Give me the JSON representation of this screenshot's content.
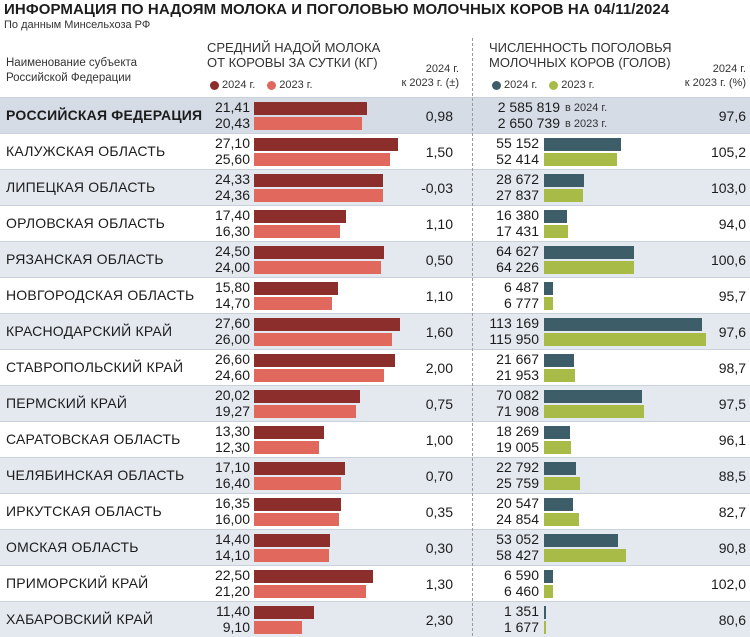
{
  "header": {
    "title": "ИНФОРМАЦИЯ ПО НАДОЯМ МОЛОКА И ПОГОЛОВЬЮ МОЛОЧНЫХ КОРОВ НА 04/11/2024",
    "source": "По данным Минсельхоза РФ",
    "region_col": [
      "Наименование субъекта",
      "Российской Федерации"
    ],
    "milk_col": [
      "СРЕДНИЙ НАДОЙ МОЛОКА",
      "ОТ КОРОВЫ ЗА СУТКИ (КГ)"
    ],
    "herd_col": [
      "ЧИСЛЕННОСТЬ ПОГОЛОВЬЯ",
      "МОЛОЧНЫХ КОРОВ (ГОЛОВ)"
    ],
    "milk_change_col": [
      "2024 г.",
      "к 2023 г. (±)"
    ],
    "herd_change_col": [
      "2024 г.",
      "к 2023 г. (%)"
    ],
    "legend_2024": "2024 г.",
    "legend_2023": "2023 г.",
    "rf_note_2024": "в 2024 г.",
    "rf_note_2023": "в 2023 г."
  },
  "colors": {
    "milk_2024": "#8c2f2c",
    "milk_2023": "#e0685c",
    "herd_2024": "#3d5d68",
    "herd_2023": "#a9bb47"
  },
  "chart_data": {
    "type": "table",
    "title": "ИНФОРМАЦИЯ ПО НАДОЯМ МОЛОКА И ПОГОЛОВЬЮ МОЛОЧНЫХ КОРОВ НА 04/11/2024",
    "series": [
      {
        "name": "2024 г.",
        "measure": "milk"
      },
      {
        "name": "2023 г.",
        "measure": "milk"
      },
      {
        "name": "2024 г.",
        "measure": "herd"
      },
      {
        "name": "2023 г.",
        "measure": "herd"
      }
    ],
    "rows": [
      {
        "region": "РОССИЙСКАЯ ФЕДЕРАЦИЯ",
        "milk_2024": 21.41,
        "milk_2023": 20.43,
        "milk_2024_text": "21,41",
        "milk_2023_text": "20,43",
        "milk_change": "0,98",
        "herd_2024": 2585819,
        "herd_2023": 2650739,
        "herd_2024_text": "2 585 819",
        "herd_2023_text": "2 650 739",
        "herd_change": "97,6"
      },
      {
        "region": "КАЛУЖСКАЯ ОБЛАСТЬ",
        "milk_2024": 27.1,
        "milk_2023": 25.6,
        "milk_2024_text": "27,10",
        "milk_2023_text": "25,60",
        "milk_change": "1,50",
        "herd_2024": 55152,
        "herd_2023": 52414,
        "herd_2024_text": "55 152",
        "herd_2023_text": "52 414",
        "herd_change": "105,2"
      },
      {
        "region": "ЛИПЕЦКАЯ ОБЛАСТЬ",
        "milk_2024": 24.33,
        "milk_2023": 24.36,
        "milk_2024_text": "24,33",
        "milk_2023_text": "24,36",
        "milk_change": "-0,03",
        "herd_2024": 28672,
        "herd_2023": 27837,
        "herd_2024_text": "28 672",
        "herd_2023_text": "27 837",
        "herd_change": "103,0"
      },
      {
        "region": "ОРЛОВСКАЯ ОБЛАСТЬ",
        "milk_2024": 17.4,
        "milk_2023": 16.3,
        "milk_2024_text": "17,40",
        "milk_2023_text": "16,30",
        "milk_change": "1,10",
        "herd_2024": 16380,
        "herd_2023": 17431,
        "herd_2024_text": "16 380",
        "herd_2023_text": "17 431",
        "herd_change": "94,0"
      },
      {
        "region": "РЯЗАНСКАЯ ОБЛАСТЬ",
        "milk_2024": 24.5,
        "milk_2023": 24.0,
        "milk_2024_text": "24,50",
        "milk_2023_text": "24,00",
        "milk_change": "0,50",
        "herd_2024": 64627,
        "herd_2023": 64226,
        "herd_2024_text": "64 627",
        "herd_2023_text": "64 226",
        "herd_change": "100,6"
      },
      {
        "region": "НОВГОРОДСКАЯ ОБЛАСТЬ",
        "milk_2024": 15.8,
        "milk_2023": 14.7,
        "milk_2024_text": "15,80",
        "milk_2023_text": "14,70",
        "milk_change": "1,10",
        "herd_2024": 6487,
        "herd_2023": 6777,
        "herd_2024_text": "6 487",
        "herd_2023_text": "6 777",
        "herd_change": "95,7"
      },
      {
        "region": "КРАСНОДАРСКИЙ КРАЙ",
        "milk_2024": 27.6,
        "milk_2023": 26.0,
        "milk_2024_text": "27,60",
        "milk_2023_text": "26,00",
        "milk_change": "1,60",
        "herd_2024": 113169,
        "herd_2023": 115950,
        "herd_2024_text": "113 169",
        "herd_2023_text": "115 950",
        "herd_change": "97,6"
      },
      {
        "region": "СТАВРОПОЛЬСКИЙ КРАЙ",
        "milk_2024": 26.6,
        "milk_2023": 24.6,
        "milk_2024_text": "26,60",
        "milk_2023_text": "24,60",
        "milk_change": "2,00",
        "herd_2024": 21667,
        "herd_2023": 21953,
        "herd_2024_text": "21 667",
        "herd_2023_text": "21 953",
        "herd_change": "98,7"
      },
      {
        "region": "ПЕРМСКИЙ КРАЙ",
        "milk_2024": 20.02,
        "milk_2023": 19.27,
        "milk_2024_text": "20,02",
        "milk_2023_text": "19,27",
        "milk_change": "0,75",
        "herd_2024": 70082,
        "herd_2023": 71908,
        "herd_2024_text": "70 082",
        "herd_2023_text": "71 908",
        "herd_change": "97,5"
      },
      {
        "region": "САРАТОВСКАЯ ОБЛАСТЬ",
        "milk_2024": 13.3,
        "milk_2023": 12.3,
        "milk_2024_text": "13,30",
        "milk_2023_text": "12,30",
        "milk_change": "1,00",
        "herd_2024": 18269,
        "herd_2023": 19005,
        "herd_2024_text": "18 269",
        "herd_2023_text": "19 005",
        "herd_change": "96,1"
      },
      {
        "region": "ЧЕЛЯБИНСКАЯ ОБЛАСТЬ",
        "milk_2024": 17.1,
        "milk_2023": 16.4,
        "milk_2024_text": "17,10",
        "milk_2023_text": "16,40",
        "milk_change": "0,70",
        "herd_2024": 22792,
        "herd_2023": 25759,
        "herd_2024_text": "22 792",
        "herd_2023_text": "25 759",
        "herd_change": "88,5"
      },
      {
        "region": "ИРКУТСКАЯ ОБЛАСТЬ",
        "milk_2024": 16.35,
        "milk_2023": 16.0,
        "milk_2024_text": "16,35",
        "milk_2023_text": "16,00",
        "milk_change": "0,35",
        "herd_2024": 20547,
        "herd_2023": 24854,
        "herd_2024_text": "20 547",
        "herd_2023_text": "24 854",
        "herd_change": "82,7"
      },
      {
        "region": "ОМСКАЯ ОБЛАСТЬ",
        "milk_2024": 14.4,
        "milk_2023": 14.1,
        "milk_2024_text": "14,40",
        "milk_2023_text": "14,10",
        "milk_change": "0,30",
        "herd_2024": 53052,
        "herd_2023": 58427,
        "herd_2024_text": "53 052",
        "herd_2023_text": "58 427",
        "herd_change": "90,8"
      },
      {
        "region": "ПРИМОРСКИЙ КРАЙ",
        "milk_2024": 22.5,
        "milk_2023": 21.2,
        "milk_2024_text": "22,50",
        "milk_2023_text": "21,20",
        "milk_change": "1,30",
        "herd_2024": 6590,
        "herd_2023": 6460,
        "herd_2024_text": "6 590",
        "herd_2023_text": "6 460",
        "herd_change": "102,0"
      },
      {
        "region": "ХАБАРОВСКИЙ КРАЙ",
        "milk_2024": 11.4,
        "milk_2023": 9.1,
        "milk_2024_text": "11,40",
        "milk_2023_text": "9,10",
        "milk_change": "2,30",
        "herd_2024": 1351,
        "herd_2023": 1677,
        "herd_2024_text": "1 351",
        "herd_2023_text": "1 677",
        "herd_change": "80,6"
      }
    ]
  }
}
